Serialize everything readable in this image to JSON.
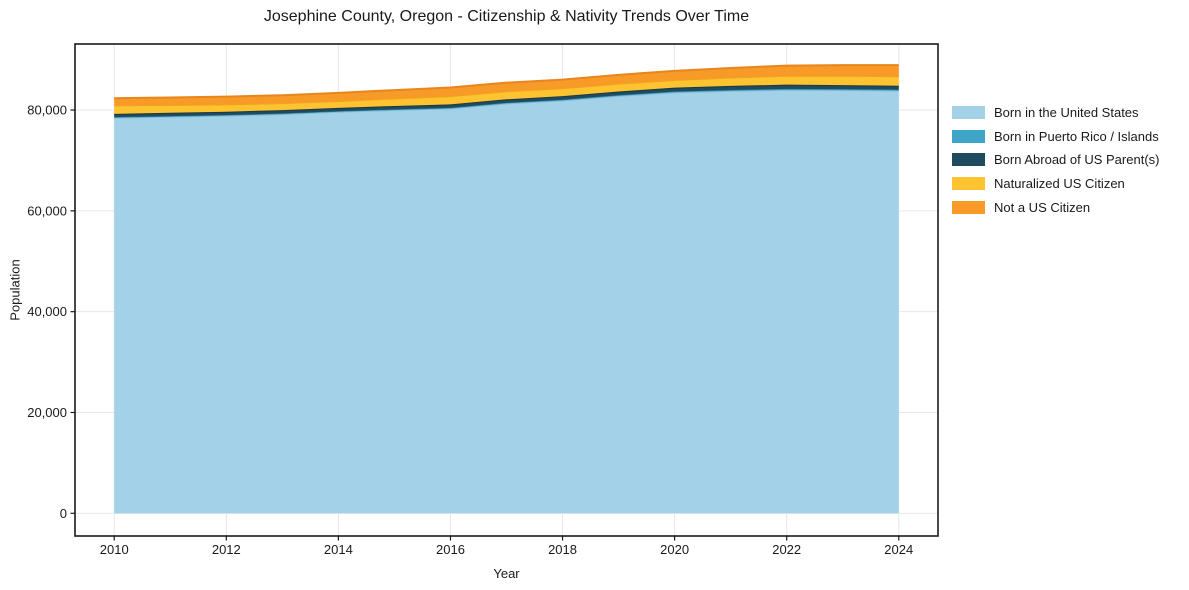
{
  "chart_data": {
    "type": "area",
    "stacked": true,
    "title": "Josephine County, Oregon - Citizenship & Nativity Trends Over Time",
    "xlabel": "Year",
    "ylabel": "Population",
    "x": [
      2010,
      2011,
      2012,
      2013,
      2014,
      2015,
      2016,
      2017,
      2018,
      2019,
      2020,
      2021,
      2022,
      2023,
      2024
    ],
    "xlim": [
      2009.3,
      2024.7
    ],
    "ylim": [
      -4500,
      93100
    ],
    "x_ticks": [
      2010,
      2012,
      2014,
      2016,
      2018,
      2020,
      2022,
      2024
    ],
    "x_tick_labels": [
      "2010",
      "2012",
      "2014",
      "2016",
      "2018",
      "2020",
      "2022",
      "2024"
    ],
    "y_ticks": [
      0,
      20000,
      40000,
      60000,
      80000
    ],
    "y_tick_labels": [
      "0",
      "20,000",
      "40,000",
      "60,000",
      "80,000"
    ],
    "grid": true,
    "legend_position": "right-outside",
    "series": [
      {
        "name": "Born in the United States",
        "color": "#a3d2e8",
        "edge_color": "#85bedb",
        "values": [
          78500,
          78700,
          78900,
          79200,
          79650,
          80000,
          80300,
          81300,
          81900,
          82800,
          83500,
          83800,
          84000,
          83950,
          83850
        ]
      },
      {
        "name": "Born in Puerto Rico / Islands",
        "color": "#3fa5c6",
        "edge_color": "#338aa8",
        "values": [
          100,
          100,
          110,
          120,
          120,
          130,
          140,
          140,
          150,
          160,
          170,
          180,
          190,
          200,
          200
        ]
      },
      {
        "name": "Born Abroad of US Parent(s)",
        "color": "#204a5d",
        "edge_color": "#19394a",
        "values": [
          650,
          650,
          660,
          660,
          670,
          670,
          680,
          690,
          700,
          730,
          780,
          820,
          840,
          800,
          760
        ]
      },
      {
        "name": "Naturalized US Citizen",
        "color": "#fdc330",
        "edge_color": "#f2a31d",
        "values": [
          1700,
          1550,
          1450,
          1380,
          1350,
          1500,
          1650,
          1600,
          1580,
          1540,
          1520,
          1650,
          1780,
          1850,
          1900
        ]
      },
      {
        "name": "Not a US Citizen",
        "color": "#f79a28",
        "edge_color": "#e8861c",
        "values": [
          1400,
          1480,
          1550,
          1580,
          1620,
          1660,
          1700,
          1700,
          1710,
          1750,
          1800,
          1900,
          2000,
          2100,
          2200
        ]
      }
    ],
    "colors": {
      "grid": "#e7e7e7",
      "frame": "#1a1a1a",
      "tick": "#1a1a1a",
      "text": "#1a1a1a",
      "background": "#ffffff"
    }
  }
}
